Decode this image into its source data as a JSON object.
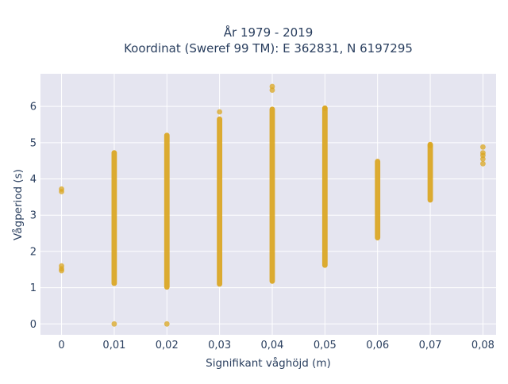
{
  "chart_data": {
    "type": "scatter",
    "title_lines": [
      "År 1979 - 2019",
      "Koordinat (Sweref 99 TM): E 362831, N 6197295"
    ],
    "xlabel": "Signifikant våghöjd (m)",
    "ylabel": "Vågperiod (s)",
    "x_ticks": [
      "0",
      "0,01",
      "0,02",
      "0,03",
      "0,04",
      "0,05",
      "0,06",
      "0,07",
      "0,08"
    ],
    "y_ticks": [
      "0",
      "1",
      "2",
      "3",
      "4",
      "5",
      "6"
    ],
    "xlim": [
      -0.004,
      0.0825
    ],
    "ylim": [
      -0.3,
      6.9
    ],
    "grid": true,
    "legend": "none",
    "colors": {
      "marker": "#DAA520",
      "plot_bg": "#E5E5F0",
      "grid": "#ffffff",
      "text": "#2a3f5f"
    },
    "points": [
      {
        "x": 0,
        "y": 1.47
      },
      {
        "x": 0,
        "y": 1.52
      },
      {
        "x": 0,
        "y": 1.6
      },
      {
        "x": 0,
        "y": 3.65
      },
      {
        "x": 0,
        "y": 3.72
      },
      {
        "x": 0.01,
        "y": 0
      },
      {
        "x": 0.02,
        "y": 0
      },
      {
        "x": 0.04,
        "y": 6.45
      },
      {
        "x": 0.04,
        "y": 6.55
      },
      {
        "x": 0.05,
        "y": 5.95
      },
      {
        "x": 0.03,
        "y": 5.85
      },
      {
        "x": 0.07,
        "y": 4.92
      },
      {
        "x": 0.08,
        "y": 4.42
      },
      {
        "x": 0.08,
        "y": 4.55
      },
      {
        "x": 0.08,
        "y": 4.65
      },
      {
        "x": 0.08,
        "y": 4.72
      },
      {
        "x": 0.08,
        "y": 4.88
      }
    ],
    "vertical_clusters": [
      {
        "x": 0.01,
        "y_min": 1.12,
        "y_max": 4.72
      },
      {
        "x": 0.02,
        "y_min": 1.02,
        "y_max": 5.2
      },
      {
        "x": 0.03,
        "y_min": 1.1,
        "y_max": 5.65
      },
      {
        "x": 0.04,
        "y_min": 1.18,
        "y_max": 5.92
      },
      {
        "x": 0.05,
        "y_min": 1.62,
        "y_max": 5.95
      },
      {
        "x": 0.06,
        "y_min": 2.38,
        "y_max": 4.48
      },
      {
        "x": 0.07,
        "y_min": 3.42,
        "y_max": 4.95
      }
    ]
  }
}
